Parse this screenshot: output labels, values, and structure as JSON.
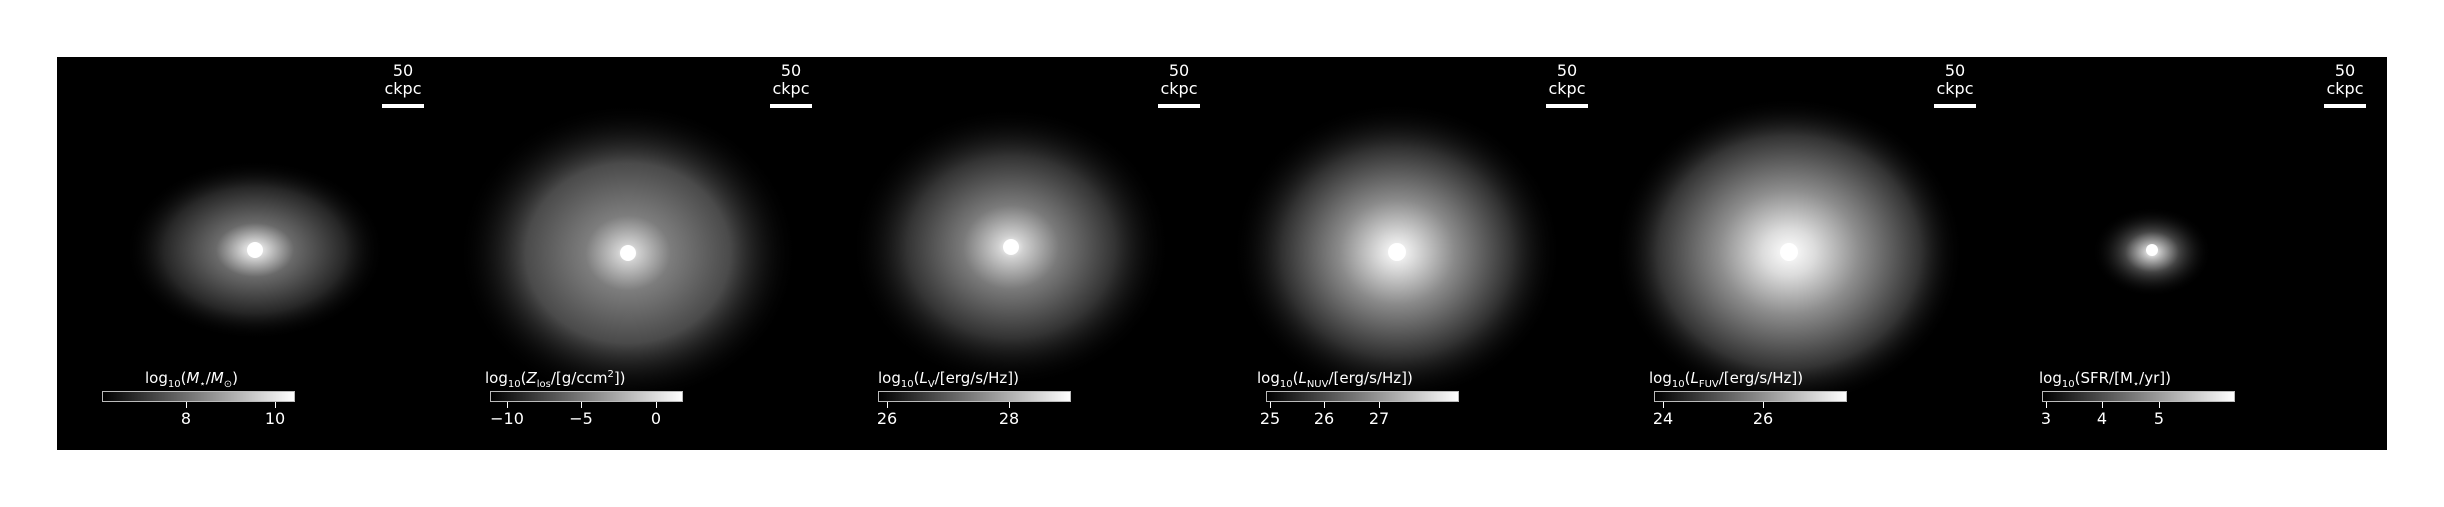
{
  "scalebar_label": "50 ckpc",
  "panels": [
    {
      "colorbar": {
        "prefix": "log",
        "base": "10",
        "pre": "(",
        "sym": "M",
        "sub": "⋆",
        "mid": "/",
        "sym2": "M",
        "sub2": "⊙",
        "post": ")"
      },
      "ticks": [
        "8",
        "10"
      ]
    },
    {
      "colorbar": {
        "prefix": "log",
        "base": "10",
        "pre": "(",
        "sym": "Z",
        "sub": "los",
        "mid": "/[g/ccm",
        "sup": "2",
        "post": "])"
      },
      "ticks": [
        "−10",
        "−5",
        "0"
      ]
    },
    {
      "colorbar": {
        "prefix": "log",
        "base": "10",
        "pre": "(",
        "sym": "L",
        "sub": "V",
        "post": "/[erg/s/Hz])"
      },
      "ticks": [
        "26",
        "28"
      ]
    },
    {
      "colorbar": {
        "prefix": "log",
        "base": "10",
        "pre": "(",
        "sym": "L",
        "sub": "NUV",
        "post": "/[erg/s/Hz])"
      },
      "ticks": [
        "25",
        "26",
        "27"
      ]
    },
    {
      "colorbar": {
        "prefix": "log",
        "base": "10",
        "pre": "(",
        "sym": "L",
        "sub": "FUV",
        "post": "/[erg/s/Hz])"
      },
      "ticks": [
        "24",
        "26"
      ]
    },
    {
      "colorbar": {
        "prefix": "log",
        "base": "10",
        "pre": "(SFR/[M",
        "sub": "⋆",
        "post": "/yr])"
      },
      "ticks": [
        "3",
        "4",
        "5"
      ]
    }
  ]
}
